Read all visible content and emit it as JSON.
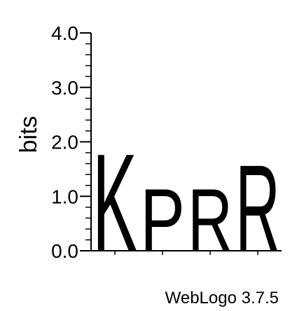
{
  "chart_data": {
    "type": "sequence-logo",
    "ylabel": "bits",
    "ylim": [
      0,
      4.0
    ],
    "y_ticks": [
      "0.0",
      "1.0",
      "2.0",
      "3.0",
      "4.0"
    ],
    "positions": [
      {
        "letter": "K",
        "height": 1.84,
        "color": "#0000ff"
      },
      {
        "letter": "P",
        "height": 1.18,
        "color": "#000000"
      },
      {
        "letter": "R",
        "height": 1.18,
        "color": "#0000ff"
      },
      {
        "letter": "R",
        "height": 1.63,
        "color": "#0000ff"
      }
    ]
  },
  "footer": {
    "text": "WebLogo 3.7.5"
  }
}
